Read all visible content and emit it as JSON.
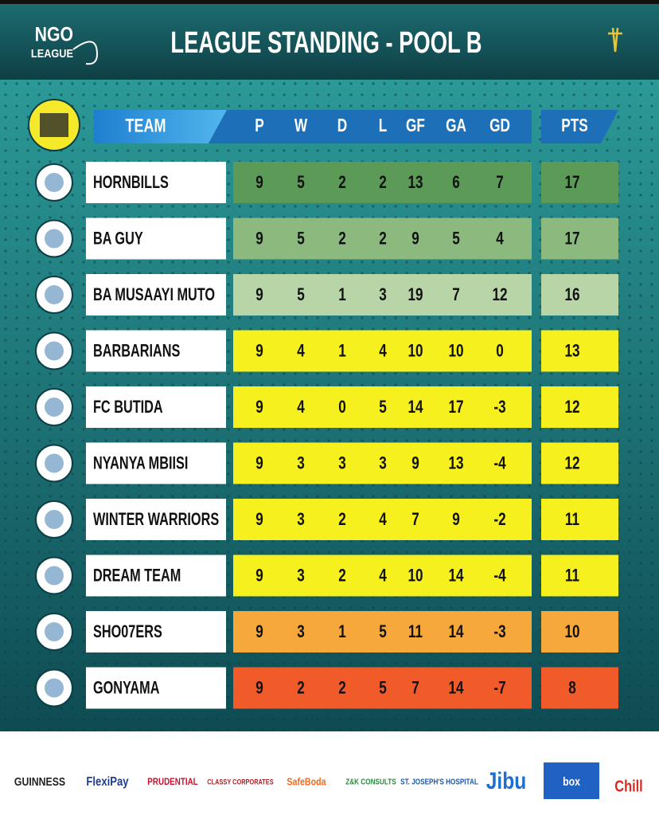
{
  "header": {
    "logo_top": "NGO",
    "logo_bottom": "LEAGUE",
    "title": "LEAGUE STANDING - POOL B"
  },
  "table": {
    "columns": [
      "TEAM",
      "P",
      "W",
      "D",
      "L",
      "GF",
      "GA",
      "GD",
      "PTS"
    ],
    "rows": [
      {
        "cells": [
          "HORNBILLS",
          9,
          5,
          2,
          2,
          13,
          6,
          7,
          17
        ],
        "color": "#5b9b57"
      },
      {
        "cells": [
          "BA GUY",
          9,
          5,
          2,
          2,
          9,
          5,
          4,
          17
        ],
        "color": "#8bb97e"
      },
      {
        "cells": [
          "BA MUSAAYI MUTO",
          9,
          5,
          1,
          3,
          19,
          7,
          12,
          16
        ],
        "color": "#b8d5a8"
      },
      {
        "cells": [
          "BARBARIANS",
          9,
          4,
          1,
          4,
          10,
          10,
          0,
          13
        ],
        "color": "#f5f01e"
      },
      {
        "cells": [
          "FC BUTIDA",
          9,
          4,
          0,
          5,
          14,
          17,
          -3,
          12
        ],
        "color": "#f5f01e"
      },
      {
        "cells": [
          "NYANYA MBIISI",
          9,
          3,
          3,
          3,
          9,
          13,
          -4,
          12
        ],
        "color": "#f5f01e"
      },
      {
        "cells": [
          "WINTER WARRIORS",
          9,
          3,
          2,
          4,
          7,
          9,
          -2,
          11
        ],
        "color": "#f5f01e"
      },
      {
        "cells": [
          "DREAM TEAM",
          9,
          3,
          2,
          4,
          10,
          14,
          -4,
          11
        ],
        "color": "#f5f01e"
      },
      {
        "cells": [
          "SHO07ERS",
          9,
          3,
          1,
          5,
          11,
          14,
          -3,
          10
        ],
        "color": "#f6a83b"
      },
      {
        "cells": [
          "GONYAMA",
          9,
          2,
          2,
          5,
          7,
          14,
          -7,
          8
        ],
        "color": "#f15b29"
      }
    ]
  },
  "sponsors": [
    "GUINNESS",
    "FlexiPay",
    "PRUDENTIAL",
    "CLASSY CORPORATES",
    "SafeBoda",
    "Z&K CONSULTS",
    "ST. JOSEPH'S HOSPITAL",
    "Jibu",
    "box",
    "Chill"
  ]
}
